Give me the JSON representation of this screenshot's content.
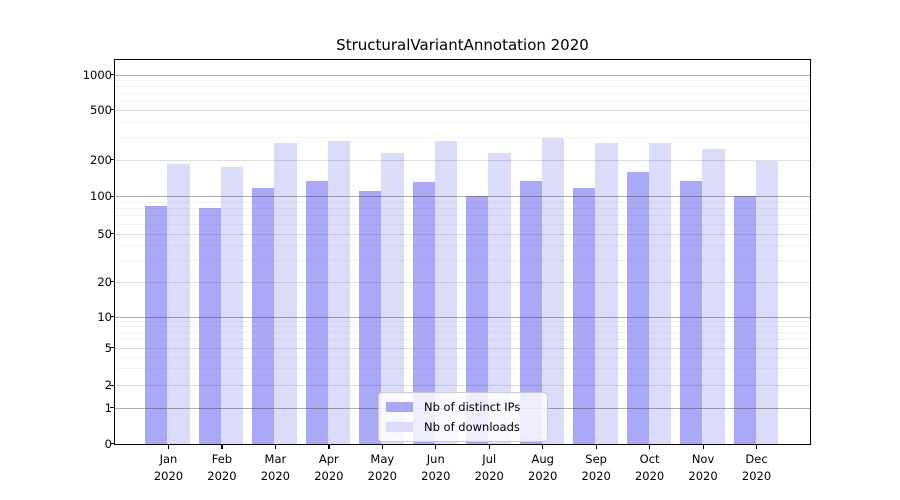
{
  "chart_data": {
    "type": "bar",
    "title": "StructuralVariantAnnotation 2020",
    "categories": [
      {
        "month": "Jan",
        "year": "2020"
      },
      {
        "month": "Feb",
        "year": "2020"
      },
      {
        "month": "Mar",
        "year": "2020"
      },
      {
        "month": "Apr",
        "year": "2020"
      },
      {
        "month": "May",
        "year": "2020"
      },
      {
        "month": "Jun",
        "year": "2020"
      },
      {
        "month": "Jul",
        "year": "2020"
      },
      {
        "month": "Aug",
        "year": "2020"
      },
      {
        "month": "Sep",
        "year": "2020"
      },
      {
        "month": "Oct",
        "year": "2020"
      },
      {
        "month": "Nov",
        "year": "2020"
      },
      {
        "month": "Dec",
        "year": "2020"
      }
    ],
    "series": [
      {
        "name": "Nb of distinct IPs",
        "color": "#a8a8f7",
        "values": [
          83,
          80,
          117,
          132,
          109,
          130,
          100,
          134,
          117,
          158,
          133,
          100
        ]
      },
      {
        "name": "Nb of downloads",
        "color": "#dbdbfa",
        "values": [
          183,
          174,
          269,
          280,
          226,
          282,
          226,
          295,
          269,
          272,
          241,
          194
        ]
      }
    ],
    "yticks": [
      0,
      1,
      2,
      5,
      10,
      20,
      50,
      100,
      200,
      500,
      1000
    ],
    "yscale": "symlog",
    "ylim": [
      0,
      1250
    ],
    "xlabel": "",
    "ylabel": "",
    "grid": "horizontal",
    "legend_position": "lower center"
  }
}
